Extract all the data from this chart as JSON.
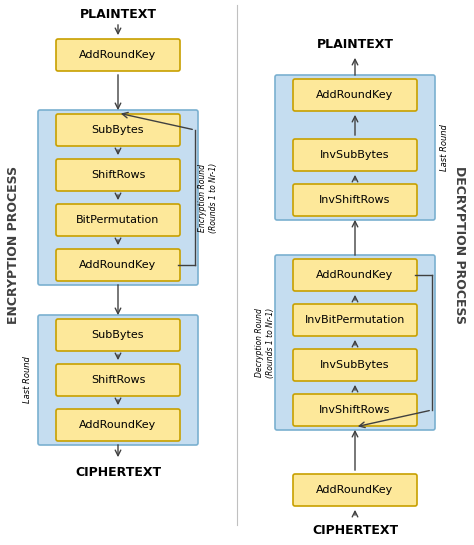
{
  "bg_color": "#ffffff",
  "box_fill": "#fde89a",
  "box_edge": "#c8a000",
  "light_blue_fill": "#c5ddf0",
  "light_blue_edge": "#7ab0d0",
  "arrow_color": "#404040",
  "enc_boxes": [
    "AddRoundKey",
    "SubBytes",
    "ShiftRows",
    "BitPermutation",
    "AddRoundKey",
    "SubBytes",
    "ShiftRows",
    "AddRoundKey"
  ],
  "dec_boxes": [
    "AddRoundKey",
    "InvShiftRows",
    "InvSubBytes",
    "InvBitPermutation",
    "AddRoundKey",
    "InvShiftRows",
    "InvSubBytes",
    "AddRoundKey"
  ],
  "enc_top_label": "PLAINTEXT",
  "enc_bottom_label": "CIPHERTEXT",
  "dec_top_label": "PLAINTEXT",
  "dec_bottom_label": "CIPHERTEXT",
  "enc_side_label": "ENCRYPTION PROCESS",
  "dec_side_label": "DECRYPTION PROCESS",
  "enc_round_label": "Encryption Round\n(Rounds 1 to Nr-1)",
  "enc_last_label": "Last Round",
  "dec_round_label": "Decryption Round\n(Rounds 1 to Nr-1)",
  "dec_last_label": "Last Round",
  "fig_width": 4.74,
  "fig_height": 5.45
}
